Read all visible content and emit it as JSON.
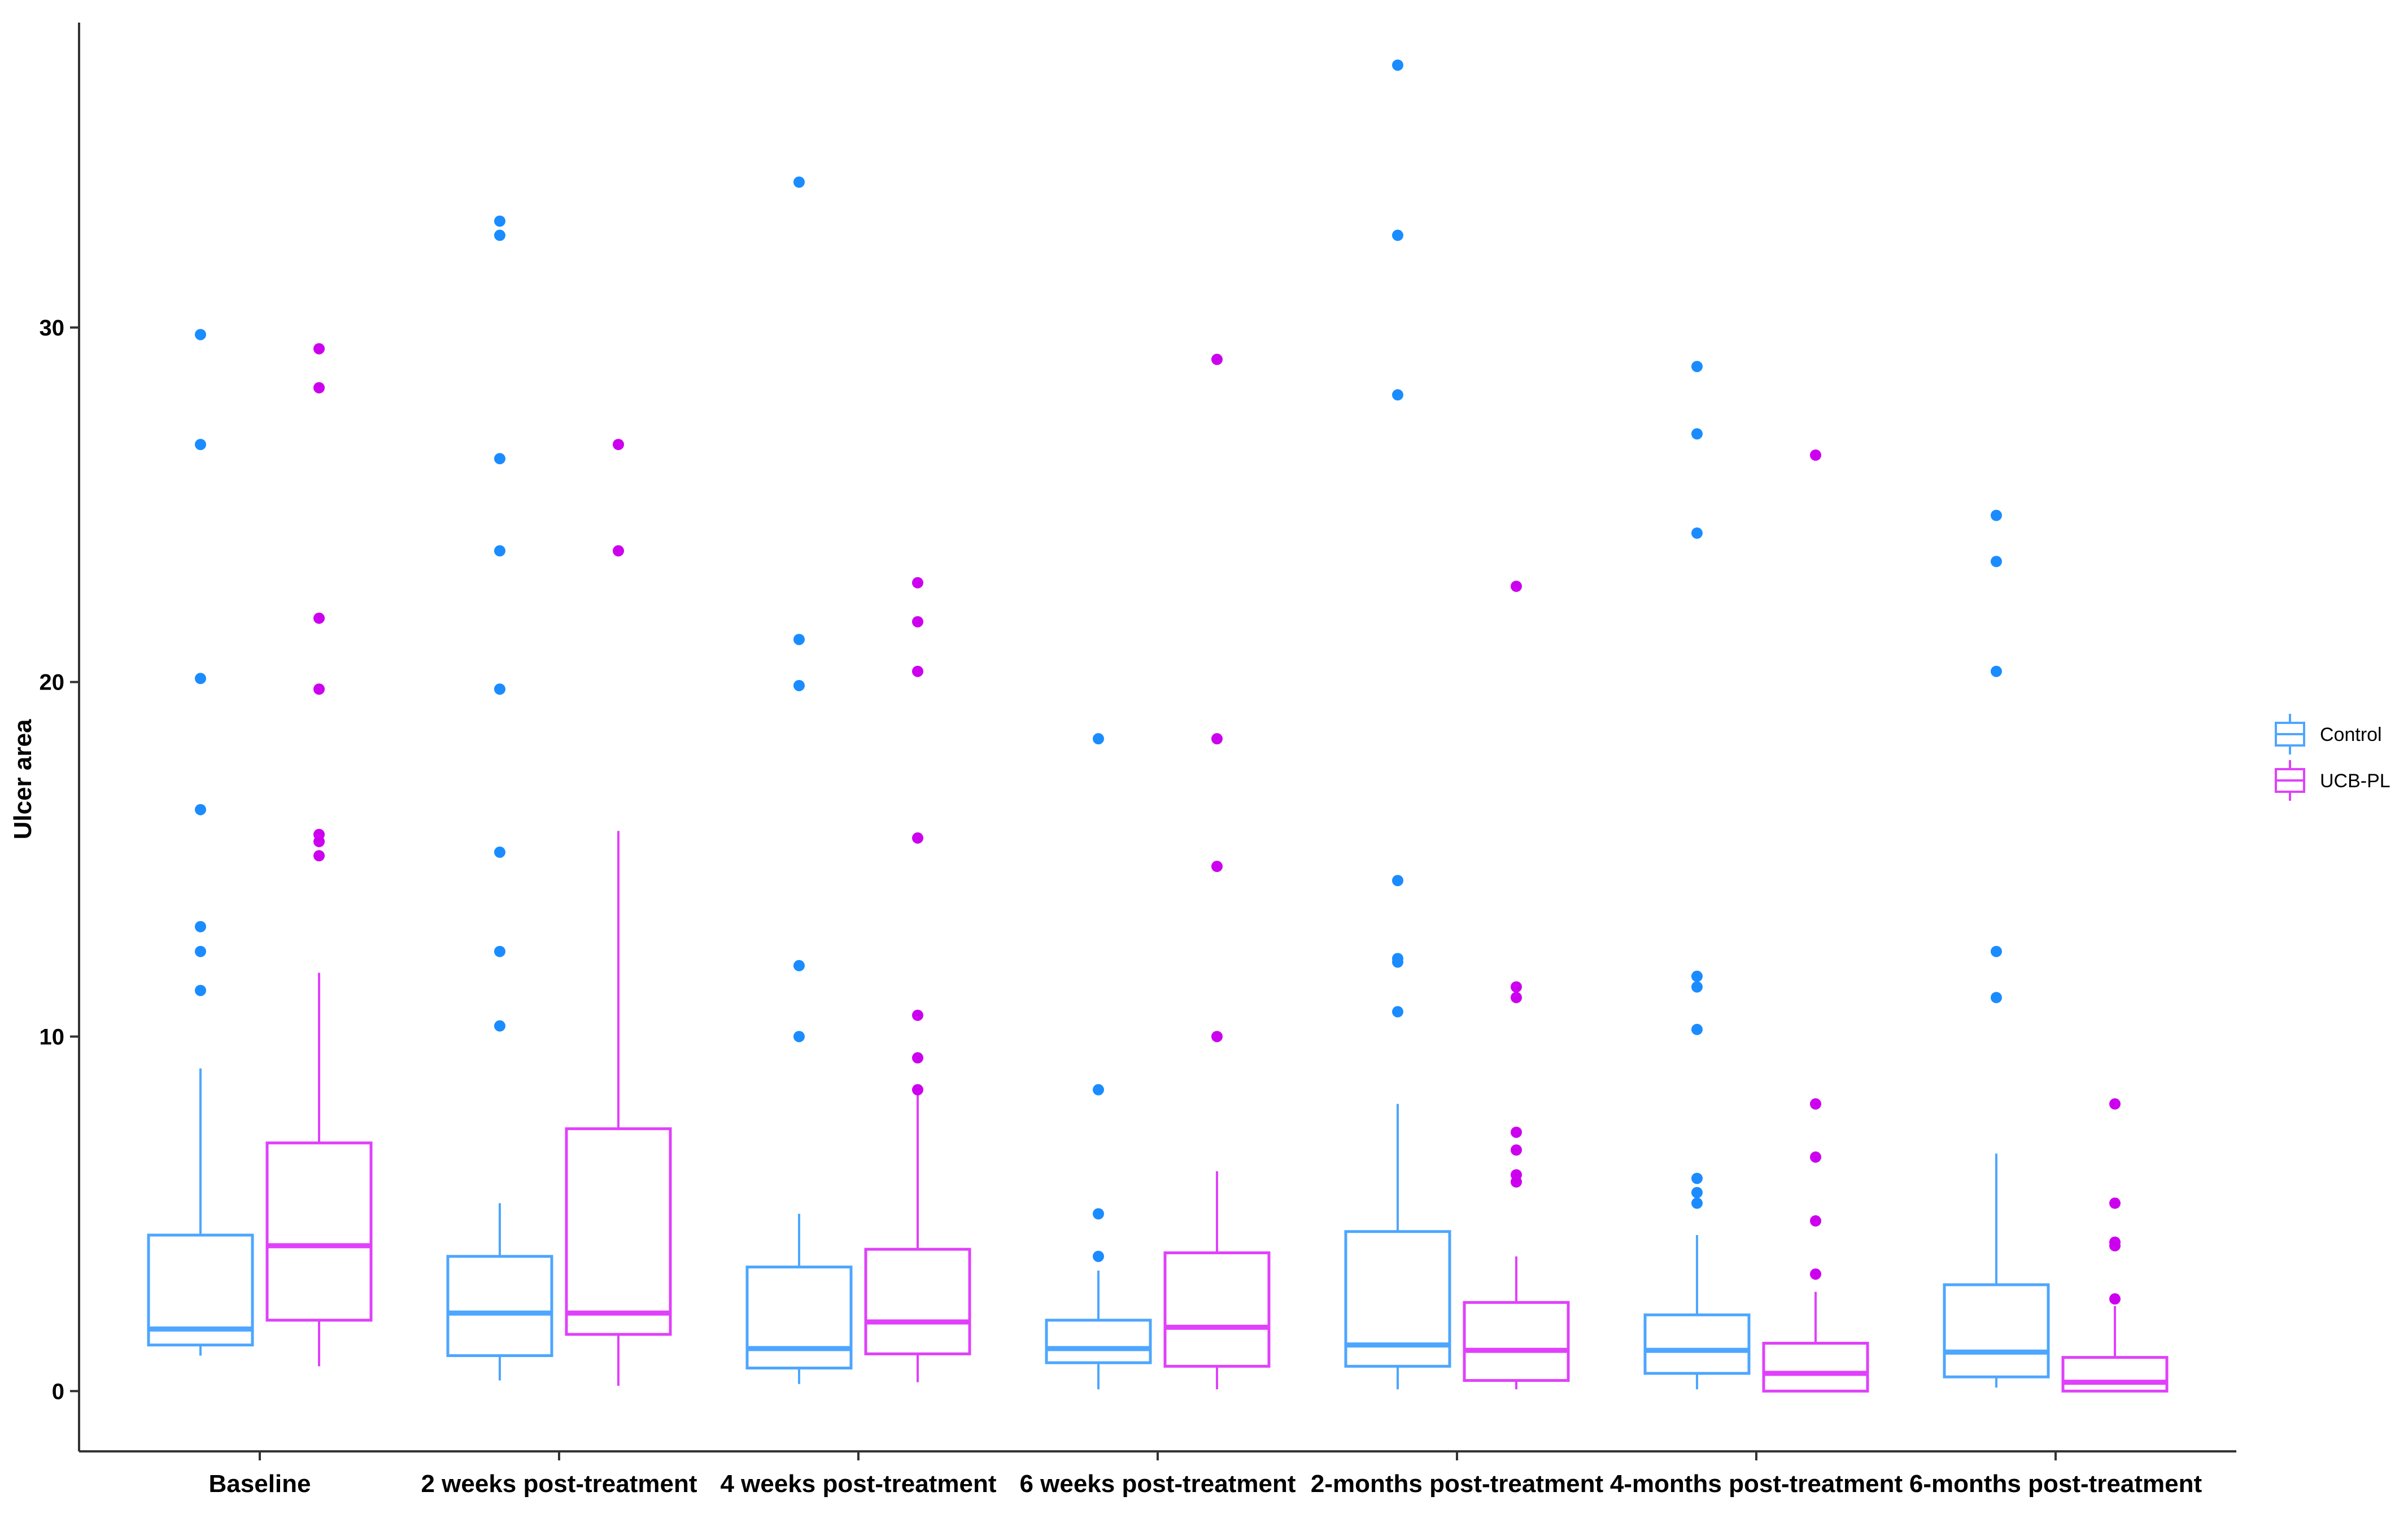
{
  "chart_data": {
    "type": "boxplot",
    "ylabel": "Ulcer area",
    "xlabel": "",
    "ylim": [
      -1.7,
      38.6
    ],
    "yticks": [
      0,
      10,
      20,
      30
    ],
    "grid": false,
    "legend_position": "right",
    "categories": [
      "Baseline",
      "2 weeks post-treatment",
      "4 weeks post-treatment",
      "6 weeks post-treatment",
      "2-months post-treatment",
      "4-months post-treatment",
      "6-months post-treatment"
    ],
    "series": [
      {
        "name": "Control",
        "color": "#4da6ff",
        "outlier_color": "#1a8cff",
        "boxes": [
          {
            "whisker_low": 1.0,
            "q1": 1.3,
            "median": 1.75,
            "q3": 4.4,
            "whisker_high": 9.1,
            "outliers": [
              29.8,
              26.7,
              20.1,
              16.4,
              13.1,
              12.4,
              11.3
            ]
          },
          {
            "whisker_low": 0.3,
            "q1": 1.0,
            "median": 2.2,
            "q3": 3.8,
            "whisker_high": 5.3,
            "outliers": [
              33.0,
              32.6,
              26.3,
              23.7,
              19.8,
              15.2,
              12.4,
              10.3
            ]
          },
          {
            "whisker_low": 0.2,
            "q1": 0.65,
            "median": 1.2,
            "q3": 3.5,
            "whisker_high": 5.0,
            "outliers": [
              34.1,
              21.2,
              19.9,
              12.0,
              10.0
            ]
          },
          {
            "whisker_low": 0.05,
            "q1": 0.8,
            "median": 1.2,
            "q3": 2.0,
            "whisker_high": 3.4,
            "outliers": [
              18.4,
              8.5,
              5.0,
              3.8
            ]
          },
          {
            "whisker_low": 0.05,
            "q1": 0.7,
            "median": 1.3,
            "q3": 4.5,
            "whisker_high": 8.1,
            "outliers": [
              37.4,
              32.6,
              28.1,
              14.4,
              12.2,
              12.1,
              10.7
            ]
          },
          {
            "whisker_low": 0.05,
            "q1": 0.5,
            "median": 1.15,
            "q3": 2.15,
            "whisker_high": 4.4,
            "outliers": [
              28.9,
              27.0,
              24.2,
              11.7,
              11.4,
              10.2,
              6.0,
              5.6,
              5.3
            ]
          },
          {
            "whisker_low": 0.1,
            "q1": 0.4,
            "median": 1.1,
            "q3": 3.0,
            "whisker_high": 6.7,
            "outliers": [
              24.7,
              23.4,
              20.3,
              12.4,
              11.1
            ]
          }
        ]
      },
      {
        "name": "UCB-PL",
        "color": "#e040fb",
        "outlier_color": "#cc00ee",
        "boxes": [
          {
            "whisker_low": 0.7,
            "q1": 2.0,
            "median": 4.1,
            "q3": 7.0,
            "whisker_high": 11.8,
            "outliers": [
              29.4,
              28.3,
              21.8,
              19.8,
              15.7,
              15.5,
              15.1
            ]
          },
          {
            "whisker_low": 0.15,
            "q1": 1.6,
            "median": 2.2,
            "q3": 7.4,
            "whisker_high": 15.8,
            "outliers": [
              26.7,
              23.7
            ]
          },
          {
            "whisker_low": 0.25,
            "q1": 1.05,
            "median": 1.95,
            "q3": 4.0,
            "whisker_high": 8.4,
            "outliers": [
              22.8,
              21.7,
              20.3,
              15.6,
              10.6,
              9.4,
              8.5
            ]
          },
          {
            "whisker_low": 0.05,
            "q1": 0.7,
            "median": 1.8,
            "q3": 3.9,
            "whisker_high": 6.2,
            "outliers": [
              29.1,
              18.4,
              14.8,
              10.0
            ]
          },
          {
            "whisker_low": 0.05,
            "q1": 0.3,
            "median": 1.15,
            "q3": 2.5,
            "whisker_high": 3.8,
            "outliers": [
              22.7,
              11.4,
              11.1,
              7.3,
              6.8,
              6.1,
              5.9
            ]
          },
          {
            "whisker_low": 0.0,
            "q1": 0.0,
            "median": 0.5,
            "q3": 1.35,
            "whisker_high": 2.8,
            "outliers": [
              26.4,
              8.1,
              6.6,
              4.8,
              3.3
            ]
          },
          {
            "whisker_low": 0.0,
            "q1": 0.0,
            "median": 0.25,
            "q3": 0.95,
            "whisker_high": 2.4,
            "outliers": [
              8.1,
              5.3,
              4.2,
              4.1,
              2.6
            ]
          }
        ]
      }
    ]
  }
}
